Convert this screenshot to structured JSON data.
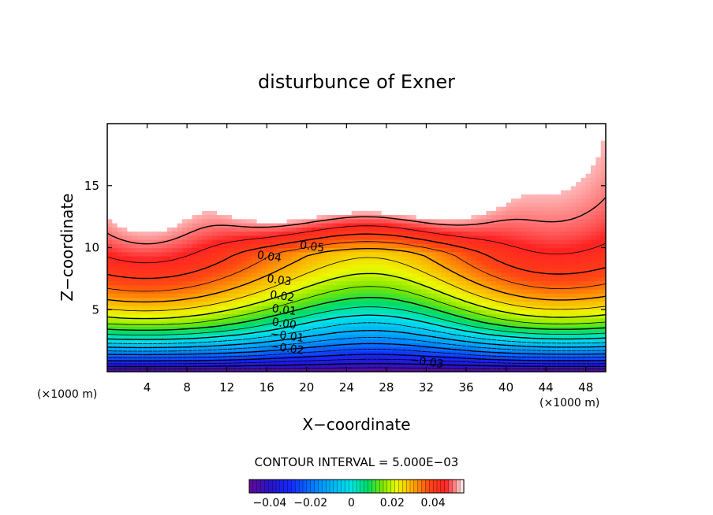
{
  "chart_data": {
    "type": "contour",
    "title": "disturbunce of Exner",
    "xlabel": "X−coordinate",
    "ylabel": "Z−coordinate",
    "x_unit_label": "(×1000 m)",
    "z_unit_label": "(×1000 m)",
    "xlim": [
      0,
      50
    ],
    "ylim": [
      0,
      20
    ],
    "x_ticks": [
      4,
      8,
      12,
      16,
      20,
      24,
      28,
      32,
      36,
      40,
      44,
      48
    ],
    "y_ticks": [
      5,
      10,
      15
    ],
    "contour_interval_label": "CONTOUR INTERVAL = 5.000E−03",
    "contour_interval": 0.005,
    "contour_labels": [
      {
        "text": "0.05",
        "value": 0.05,
        "x": 20.5,
        "z": 9.8
      },
      {
        "text": "0.04",
        "value": 0.04,
        "x": 16.2,
        "z": 9.0
      },
      {
        "text": "0.03",
        "value": 0.03,
        "x": 17.2,
        "z": 7.1
      },
      {
        "text": "0.02",
        "value": 0.02,
        "x": 17.5,
        "z": 5.8
      },
      {
        "text": "0.01",
        "value": 0.01,
        "x": 17.7,
        "z": 4.7
      },
      {
        "text": "0.00",
        "value": 0.0,
        "x": 17.7,
        "z": 3.6
      },
      {
        "text": "−0.01",
        "value": -0.01,
        "x": 18.0,
        "z": 2.6
      },
      {
        "text": "−0.02",
        "value": -0.02,
        "x": 18.0,
        "z": 1.6
      },
      {
        "text": "−0.03",
        "value": -0.03,
        "x": 32.0,
        "z": 0.5
      }
    ],
    "colorbar": {
      "ticks": [
        "−0.04",
        "−0.02",
        "0",
        "0.02",
        "0.04"
      ],
      "tick_values": [
        -0.04,
        -0.02,
        0,
        0.02,
        0.04
      ],
      "range": [
        -0.05,
        0.055
      ]
    },
    "colors": {
      "max_region": "#ffffff",
      "high": "#ff2020",
      "mid_high": "#ffff00",
      "mid": "#00e070",
      "zero": "#00e8e8",
      "low": "#1030ff",
      "min": "#6a0ca0"
    }
  }
}
